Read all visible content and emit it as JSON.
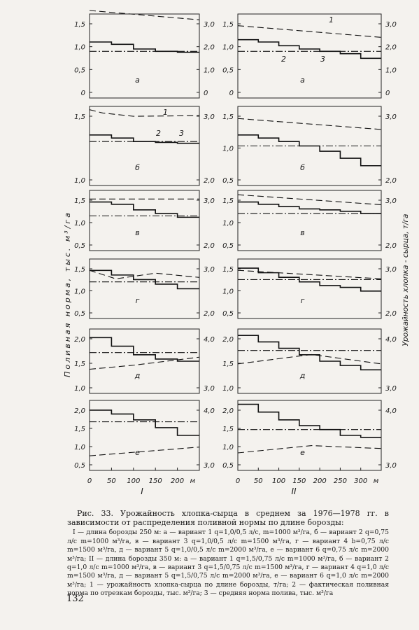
{
  "chart_data": {
    "type": "line",
    "y_label_left": "Поливная норма, тыс. м³/га",
    "y_label_right": "Урожайность хлопка - сырца, т/га",
    "columns": [
      {
        "label": "I",
        "x_unit": "м",
        "x_ticks": [
          "0",
          "50",
          "100",
          "150",
          "200"
        ],
        "panels": [
          {
            "label": "а",
            "left_ticks": [
              "0",
              "0,5",
              "1,0",
              "1,5"
            ],
            "right_ticks": [
              "0",
              "1,0",
              "2,0",
              "3,0"
            ],
            "yleft": [
              0,
              1.8
            ],
            "yright": [
              0,
              3.6
            ],
            "fact_steps": [
              1.2,
              1.15,
              1.05,
              1.0,
              0.98
            ],
            "avg_norm": 1.0,
            "yield_curve": [
              [
                0,
                3.75
              ],
              [
                250,
                3.35
              ]
            ]
          },
          {
            "label": "б",
            "left_ticks": [
              "1,0",
              "1,5"
            ],
            "right_ticks": [
              "2,0",
              "3,0"
            ],
            "yleft": [
              0,
              1.8
            ],
            "yright": [
              0,
              3.6
            ],
            "fact_steps": [
              1.15,
              1.08,
              1.0,
              0.98,
              0.96
            ],
            "avg_norm": 1.0,
            "yield_curve": [
              [
                0,
                3.45
              ],
              [
                30,
                3.3
              ],
              [
                100,
                3.15
              ],
              [
                250,
                3.18
              ]
            ],
            "curve_labels": [
              "1",
              "2",
              "3"
            ]
          },
          {
            "label": "в",
            "left_ticks": [
              "0,5",
              "1,0",
              "1,5"
            ],
            "right_ticks": [
              "2,0",
              "3,0"
            ],
            "yleft": [
              0.5,
              1.8
            ],
            "yright": [
              1.5,
              3.6
            ],
            "fact_steps": [
              1.55,
              1.5,
              1.38,
              1.3,
              1.22
            ],
            "avg_norm": 1.25,
            "yield_curve": [
              [
                0,
                3.3
              ],
              [
                250,
                3.3
              ]
            ]
          },
          {
            "label": "г",
            "left_ticks": [
              "0,5",
              "1,0",
              "1,5"
            ],
            "right_ticks": [
              "2,0",
              "3,0"
            ],
            "yleft": [
              0.5,
              1.8
            ],
            "yright": [
              1.5,
              3.6
            ],
            "fact_steps": [
              1.55,
              1.45,
              1.35,
              1.25,
              1.15
            ],
            "avg_norm": 1.3,
            "yield_curve": [
              [
                0,
                3.2
              ],
              [
                60,
                2.9
              ],
              [
                150,
                3.1
              ],
              [
                250,
                2.95
              ]
            ]
          },
          {
            "label": "д",
            "left_ticks": [
              "1,0",
              "1,5",
              "2,0"
            ],
            "right_ticks": [
              "3,0",
              "4,0"
            ],
            "yleft": [
              0.8,
              2.3
            ],
            "yright": [
              2.2,
              4.6
            ],
            "fact_steps": [
              2.1,
              1.9,
              1.7,
              1.6,
              1.55
            ],
            "avg_norm": 1.75,
            "yield_curve": [
              [
                0,
                3.1
              ],
              [
                100,
                3.25
              ],
              [
                250,
                3.55
              ]
            ]
          },
          {
            "label": "е",
            "left_ticks": [
              "0,5",
              "1,0",
              "1,5",
              "2,0"
            ],
            "right_ticks": [
              "3,0",
              "4,0"
            ],
            "yleft": [
              0.5,
              2.3
            ],
            "yright": [
              2.2,
              4.6
            ],
            "fact_steps": [
              2.05,
              1.95,
              1.8,
              1.6,
              1.4
            ],
            "avg_norm": 1.75,
            "yield_curve": [
              [
                0,
                2.7
              ],
              [
                250,
                3.0
              ]
            ]
          }
        ]
      },
      {
        "label": "II",
        "x_unit": "м",
        "x_ticks": [
          "0",
          "50",
          "100",
          "150",
          "200",
          "250",
          "300"
        ],
        "panels": [
          {
            "label": "а",
            "left_ticks": [
              "0",
              "0,5",
              "1,0",
              "1,5"
            ],
            "right_ticks": [
              "0",
              "1,0",
              "2,0",
              "3,0"
            ],
            "yleft": [
              0,
              1.8
            ],
            "yright": [
              0,
              3.6
            ],
            "fact_steps": [
              1.25,
              1.2,
              1.12,
              1.05,
              1.0,
              0.95,
              0.85
            ],
            "avg_norm": 1.0,
            "yield_curve": [
              [
                0,
                3.1
              ],
              [
                350,
                2.6
              ]
            ],
            "curve_labels": [
              "1",
              "2",
              "3"
            ]
          },
          {
            "label": "б",
            "left_ticks": [
              "0,5",
              "1,0",
              "1,5"
            ],
            "right_ticks": [
              "2,0",
              "3,0"
            ],
            "yleft": [
              0,
              1.8
            ],
            "yright": [
              0,
              3.6
            ],
            "fact_steps": [
              1.15,
              1.08,
              1.0,
              0.9,
              0.78,
              0.62,
              0.45
            ],
            "avg_norm": 0.9,
            "yield_curve": [
              [
                0,
                3.05
              ],
              [
                350,
                2.55
              ]
            ]
          },
          {
            "label": "в",
            "left_ticks": [
              "0,5",
              "1,0",
              "1,5"
            ],
            "right_ticks": [
              "2,0",
              "3,0"
            ],
            "yleft": [
              0.5,
              1.8
            ],
            "yright": [
              1.5,
              3.6
            ],
            "fact_steps": [
              1.55,
              1.5,
              1.45,
              1.4,
              1.38,
              1.35,
              1.3
            ],
            "avg_norm": 1.3,
            "yield_curve": [
              [
                0,
                3.45
              ],
              [
                350,
                3.1
              ]
            ]
          },
          {
            "label": "г",
            "left_ticks": [
              "0,5",
              "1,0",
              "1,5"
            ],
            "right_ticks": [
              "2,0",
              "3,0"
            ],
            "yleft": [
              0.5,
              1.8
            ],
            "yright": [
              1.5,
              3.6
            ],
            "fact_steps": [
              1.6,
              1.5,
              1.4,
              1.3,
              1.22,
              1.18,
              1.1
            ],
            "avg_norm": 1.35,
            "yield_curve": [
              [
                0,
                3.2
              ],
              [
                350,
                2.9
              ]
            ]
          },
          {
            "label": "д",
            "left_ticks": [
              "1,0",
              "1,5",
              "2,0"
            ],
            "right_ticks": [
              "3,0",
              "4,0"
            ],
            "yleft": [
              0.8,
              2.3
            ],
            "yright": [
              2.2,
              4.6
            ],
            "fact_steps": [
              2.15,
              2.0,
              1.85,
              1.7,
              1.55,
              1.45,
              1.35
            ],
            "avg_norm": 1.8,
            "yield_curve": [
              [
                0,
                3.3
              ],
              [
                180,
                3.65
              ],
              [
                350,
                3.3
              ]
            ]
          },
          {
            "label": "е",
            "left_ticks": [
              "0,5",
              "1,0",
              "1,5",
              "2,0"
            ],
            "right_ticks": [
              "3,0",
              "4,0"
            ],
            "yleft": [
              0.5,
              2.3
            ],
            "yright": [
              2.2,
              4.6
            ],
            "fact_steps": [
              2.2,
              2.0,
              1.8,
              1.65,
              1.55,
              1.4,
              1.35
            ],
            "avg_norm": 1.55,
            "yield_curve": [
              [
                0,
                2.8
              ],
              [
                180,
                3.05
              ],
              [
                350,
                2.95
              ]
            ]
          }
        ]
      }
    ]
  },
  "caption": {
    "title": "Рис. 33. Урожайность хлопка-сырца в среднем за 1976—1978 гг. в зависимости от распределения поливной нормы по длине борозды:",
    "body": "I — длина борозды 250 м: а — вариант 1 q=1,0/0,5 л/с, m=1000 м³/га, б — вариант 2 q=0,75 л/с m=1000 м³/га, в — вариант 3 q=1,0/0,5 л/с m=1500 м³/га, г — вариант 4 b=0,75 л/с m=1500 м³/га, д — вариант 5 q=1,0/0,5 л/с m=2000 м³/га, е — вариант 6 q=0,75 л/с m=2000 м³/га; II — длина борозды 350 м: а — вариант 1 q=1,5/0,75 л/с m=1000 м³/га, б — вариант 2 q=1,0 л/с m=1000 м³/га, в — вариант 3 q=1,5/0,75 л/с m=1500 м³/га, г — вариант 4 q=1,0 л/с m=1500 м³/га, д — вариант 5 q=1,5/0,75 л/с m=2000 м³/га, е — вариант 6 q=1,0 л/с m=2000 м³/га; 1 — урожайность хлопка-сырца по длине борозды, т/га; 2 — фактическая поливная норма по отрезкам борозды, тыс. м³/га; 3 — средняя норма полива, тыс. м³/га"
  },
  "page_number": "132"
}
